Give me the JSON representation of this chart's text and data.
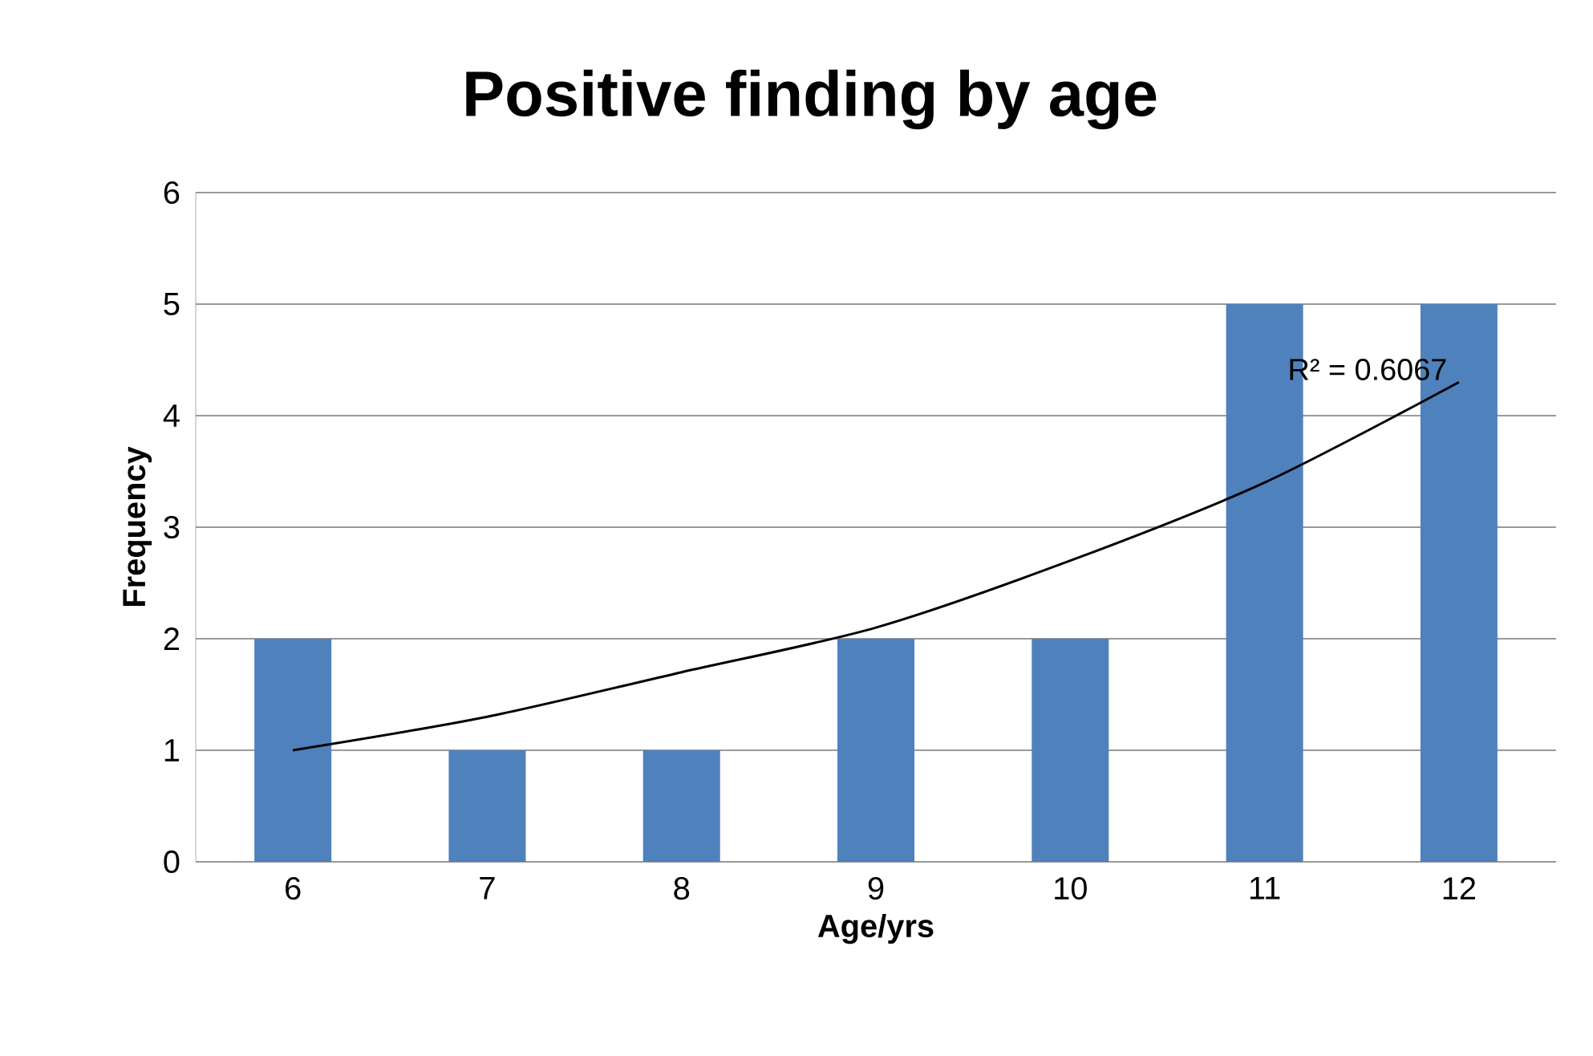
{
  "chart_data": {
    "type": "bar",
    "title": "Positive finding by age",
    "xlabel": "Age/yrs",
    "ylabel": "Frequency",
    "categories": [
      "6",
      "7",
      "8",
      "9",
      "10",
      "11",
      "12"
    ],
    "series": [
      {
        "color": "#4f81bd",
        "values": [
          2,
          1,
          1,
          2,
          2,
          5,
          5
        ]
      },
      {
        "type": "line",
        "color": "#000000",
        "values": [
          1.0,
          1.3,
          1.7,
          2.1,
          2.7,
          3.4,
          4.3
        ]
      }
    ],
    "annotations": [
      "R² = 0.6067"
    ],
    "ylim": [
      0,
      6
    ],
    "yticks": [
      0,
      1,
      2,
      3,
      4,
      5,
      6
    ],
    "grid": "y"
  }
}
